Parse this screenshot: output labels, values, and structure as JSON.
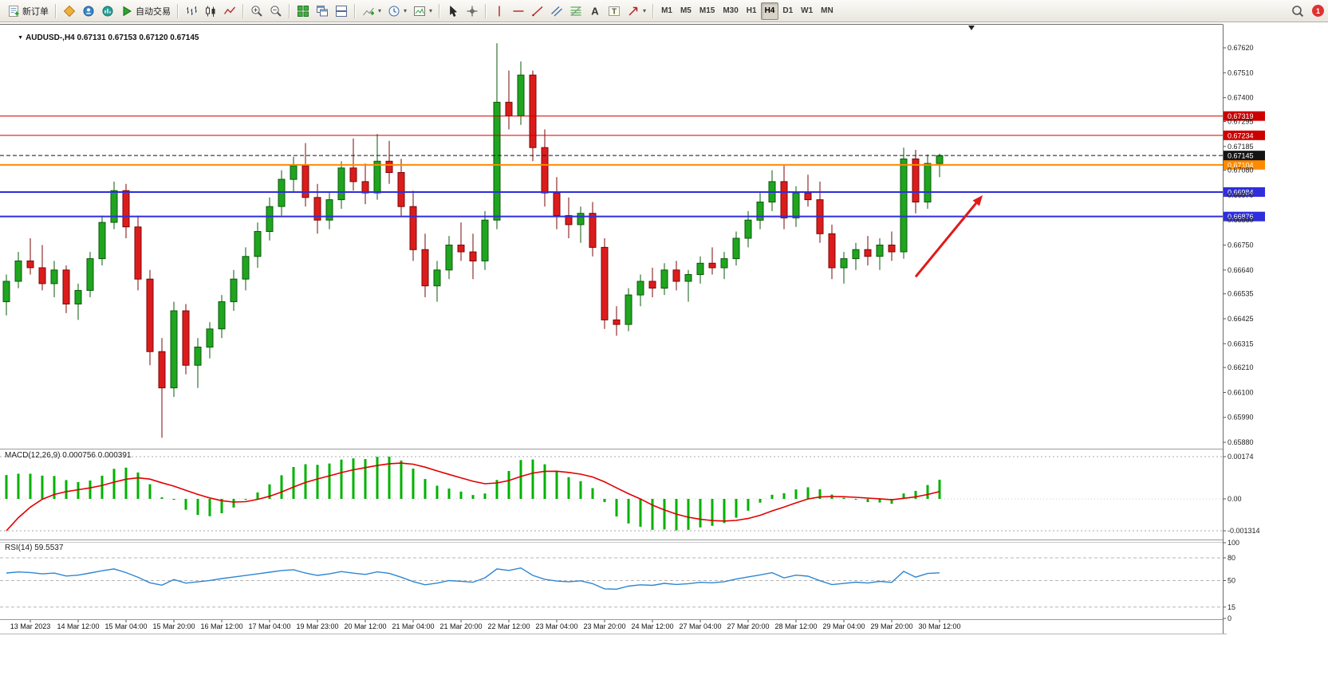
{
  "toolbar": {
    "buttons": [
      {
        "name": "new-order-button",
        "icon": "new-order",
        "label": "新订单"
      },
      {
        "type": "sep"
      },
      {
        "name": "market-button",
        "icon": "market"
      },
      {
        "name": "community-button",
        "icon": "community"
      },
      {
        "name": "signals-button",
        "icon": "signals"
      },
      {
        "name": "autotrade-button",
        "icon": "play",
        "label": "自动交易"
      },
      {
        "type": "sep"
      },
      {
        "name": "bar-chart-button",
        "icon": "bars"
      },
      {
        "name": "candlestick-chart-button",
        "icon": "candles"
      },
      {
        "name": "line-chart-button",
        "icon": "linechart"
      },
      {
        "type": "sep"
      },
      {
        "name": "zoom-in-button",
        "icon": "zoom-in"
      },
      {
        "name": "zoom-out-button",
        "icon": "zoom-out"
      },
      {
        "type": "sep"
      },
      {
        "name": "tile-windows-button",
        "icon": "tile"
      },
      {
        "name": "cascade-windows-button",
        "icon": "cascade"
      },
      {
        "name": "arrange-windows-button",
        "icon": "arrange"
      },
      {
        "type": "sep"
      },
      {
        "name": "indicators-button",
        "icon": "indicator",
        "caret": true
      },
      {
        "name": "periods-button",
        "icon": "clock",
        "caret": true
      },
      {
        "name": "templates-button",
        "icon": "template",
        "caret": true
      },
      {
        "type": "sep"
      },
      {
        "name": "cursor-button",
        "icon": "cursor"
      },
      {
        "name": "crosshair-button",
        "icon": "crosshair"
      },
      {
        "type": "sep"
      },
      {
        "name": "vertical-line-button",
        "icon": "vline"
      },
      {
        "name": "horizontal-line-button",
        "icon": "hline"
      },
      {
        "name": "trendline-button",
        "icon": "trendline"
      },
      {
        "name": "channel-button",
        "icon": "channel"
      },
      {
        "name": "fibonacci-button",
        "icon": "fibo"
      },
      {
        "name": "text-button",
        "icon": "text-a"
      },
      {
        "name": "label-button",
        "icon": "text-t"
      },
      {
        "name": "arrows-button",
        "icon": "arrow-tool",
        "caret": true
      },
      {
        "type": "sep"
      }
    ],
    "timeframes": [
      {
        "label": "M1"
      },
      {
        "label": "M5"
      },
      {
        "label": "M15"
      },
      {
        "label": "M30"
      },
      {
        "label": "H1"
      },
      {
        "label": "H4",
        "active": true
      },
      {
        "label": "D1"
      },
      {
        "label": "W1"
      },
      {
        "label": "MN"
      }
    ],
    "right": {
      "notification_count": "1"
    }
  },
  "chart": {
    "expander_glyph": "▼",
    "title": "AUDUSD-,H4 0.67131 0.67153 0.67120 0.67145"
  },
  "chart_data": {
    "type": "candlestick",
    "symbol": "AUDUSD-",
    "period": "H4",
    "ohlc_current": {
      "open": "0.67131",
      "high": "0.67153",
      "low": "0.67120",
      "close": "0.67145"
    },
    "y_axis": {
      "max": 0.67722,
      "min": 0.65852
    },
    "price_axis_labels": [
      "0.67620",
      "0.67510",
      "0.67400",
      "0.67295",
      "0.67185",
      "0.67080",
      "0.66970",
      "0.66860",
      "0.66750",
      "0.66640",
      "0.66535",
      "0.66425",
      "0.66315",
      "0.66210",
      "0.66100",
      "0.65990",
      "0.65880"
    ],
    "time_labels": [
      "13 Mar 2023",
      "14 Mar 12:00",
      "15 Mar 04:00",
      "15 Mar 20:00",
      "16 Mar 12:00",
      "17 Mar 04:00",
      "19 Mar 23:00",
      "20 Mar 12:00",
      "21 Mar 04:00",
      "21 Mar 20:00",
      "22 Mar 12:00",
      "23 Mar 04:00",
      "23 Mar 20:00",
      "24 Mar 12:00",
      "27 Mar 04:00",
      "27 Mar 20:00",
      "28 Mar 12:00",
      "29 Mar 04:00",
      "29 Mar 20:00",
      "30 Mar 12:00"
    ],
    "candles": [
      [
        0.665,
        0.6662,
        0.6644,
        0.6659
      ],
      [
        0.6659,
        0.6672,
        0.6656,
        0.6668
      ],
      [
        0.6668,
        0.6678,
        0.6662,
        0.6665
      ],
      [
        0.6665,
        0.6675,
        0.6655,
        0.6658
      ],
      [
        0.6658,
        0.6668,
        0.6652,
        0.6664
      ],
      [
        0.6664,
        0.6666,
        0.6645,
        0.6649
      ],
      [
        0.6649,
        0.6658,
        0.6642,
        0.6655
      ],
      [
        0.6655,
        0.6672,
        0.6652,
        0.6669
      ],
      [
        0.6669,
        0.6688,
        0.6666,
        0.6685
      ],
      [
        0.6685,
        0.6703,
        0.6682,
        0.6699
      ],
      [
        0.6699,
        0.6702,
        0.6678,
        0.6683
      ],
      [
        0.6683,
        0.6688,
        0.6655,
        0.666
      ],
      [
        0.666,
        0.6664,
        0.6622,
        0.6628
      ],
      [
        0.6628,
        0.6634,
        0.659,
        0.6612
      ],
      [
        0.6612,
        0.665,
        0.6608,
        0.6646
      ],
      [
        0.6646,
        0.6649,
        0.6618,
        0.6622
      ],
      [
        0.6622,
        0.6634,
        0.6612,
        0.663
      ],
      [
        0.663,
        0.6641,
        0.6625,
        0.6638
      ],
      [
        0.6638,
        0.6653,
        0.6634,
        0.665
      ],
      [
        0.665,
        0.6664,
        0.6646,
        0.666
      ],
      [
        0.666,
        0.6674,
        0.6655,
        0.667
      ],
      [
        0.667,
        0.6685,
        0.6665,
        0.6681
      ],
      [
        0.6681,
        0.6696,
        0.6677,
        0.6692
      ],
      [
        0.6692,
        0.6708,
        0.6688,
        0.6704
      ],
      [
        0.6704,
        0.6714,
        0.6698,
        0.671
      ],
      [
        0.671,
        0.672,
        0.6692,
        0.6696
      ],
      [
        0.6696,
        0.6702,
        0.668,
        0.6686
      ],
      [
        0.6686,
        0.6698,
        0.6682,
        0.6695
      ],
      [
        0.6695,
        0.6712,
        0.6691,
        0.6709
      ],
      [
        0.6709,
        0.6722,
        0.6699,
        0.6703
      ],
      [
        0.6703,
        0.6711,
        0.6693,
        0.6698
      ],
      [
        0.6698,
        0.6724,
        0.6695,
        0.6712
      ],
      [
        0.6712,
        0.6721,
        0.6702,
        0.6707
      ],
      [
        0.6707,
        0.6713,
        0.6688,
        0.6692
      ],
      [
        0.6692,
        0.6699,
        0.6668,
        0.6673
      ],
      [
        0.6673,
        0.668,
        0.6652,
        0.6657
      ],
      [
        0.6657,
        0.6668,
        0.665,
        0.6664
      ],
      [
        0.6664,
        0.6679,
        0.666,
        0.6675
      ],
      [
        0.6675,
        0.6685,
        0.6668,
        0.6672
      ],
      [
        0.6672,
        0.668,
        0.666,
        0.6668
      ],
      [
        0.6668,
        0.669,
        0.6664,
        0.6686
      ],
      [
        0.6686,
        0.6764,
        0.6682,
        0.6738
      ],
      [
        0.6738,
        0.6752,
        0.6726,
        0.6732
      ],
      [
        0.6732,
        0.6756,
        0.6728,
        0.675
      ],
      [
        0.675,
        0.6752,
        0.6712,
        0.6718
      ],
      [
        0.6718,
        0.6726,
        0.6692,
        0.6698
      ],
      [
        0.6698,
        0.6705,
        0.6682,
        0.6688
      ],
      [
        0.6688,
        0.6696,
        0.6678,
        0.6684
      ],
      [
        0.6684,
        0.6692,
        0.6676,
        0.6689
      ],
      [
        0.6689,
        0.6694,
        0.667,
        0.6674
      ],
      [
        0.6674,
        0.6678,
        0.6638,
        0.6642
      ],
      [
        0.6642,
        0.6648,
        0.6635,
        0.664
      ],
      [
        0.664,
        0.6656,
        0.6637,
        0.6653
      ],
      [
        0.6653,
        0.6662,
        0.6648,
        0.6659
      ],
      [
        0.6659,
        0.6665,
        0.6652,
        0.6656
      ],
      [
        0.6656,
        0.6667,
        0.6653,
        0.6664
      ],
      [
        0.6664,
        0.6668,
        0.6655,
        0.6659
      ],
      [
        0.6659,
        0.6664,
        0.665,
        0.6662
      ],
      [
        0.6662,
        0.667,
        0.6658,
        0.6667
      ],
      [
        0.6667,
        0.6674,
        0.6662,
        0.6665
      ],
      [
        0.6665,
        0.6672,
        0.666,
        0.6669
      ],
      [
        0.6669,
        0.6681,
        0.6666,
        0.6678
      ],
      [
        0.6678,
        0.669,
        0.6674,
        0.6686
      ],
      [
        0.6686,
        0.6698,
        0.6682,
        0.6694
      ],
      [
        0.6694,
        0.6708,
        0.669,
        0.6703
      ],
      [
        0.6703,
        0.671,
        0.6682,
        0.6687
      ],
      [
        0.6687,
        0.6701,
        0.6683,
        0.6698
      ],
      [
        0.6698,
        0.6706,
        0.6692,
        0.6695
      ],
      [
        0.6695,
        0.6703,
        0.6676,
        0.668
      ],
      [
        0.668,
        0.6684,
        0.666,
        0.6665
      ],
      [
        0.6665,
        0.6672,
        0.6658,
        0.6669
      ],
      [
        0.6669,
        0.6676,
        0.6664,
        0.6673
      ],
      [
        0.6673,
        0.6679,
        0.6666,
        0.667
      ],
      [
        0.667,
        0.6678,
        0.6664,
        0.6675
      ],
      [
        0.6675,
        0.6681,
        0.6668,
        0.6672
      ],
      [
        0.6672,
        0.6718,
        0.6669,
        0.6713
      ],
      [
        0.6713,
        0.6717,
        0.6689,
        0.6694
      ],
      [
        0.6694,
        0.6715,
        0.6691,
        0.6711
      ],
      [
        0.6711,
        0.67153,
        0.6705,
        0.67145
      ]
    ],
    "hlines": [
      {
        "price": 0.67319,
        "label": "0.67319",
        "color": "#CC0000",
        "width": 1,
        "role": "resistance"
      },
      {
        "price": 0.67234,
        "label": "0.67234",
        "color": "#CC0000",
        "width": 1,
        "role": "resistance"
      },
      {
        "price": 0.67104,
        "label": "0.67104",
        "color": "#FF8A00",
        "width": 2,
        "role": "level"
      },
      {
        "price": 0.66984,
        "label": "0.66984",
        "color": "#2E2EDC",
        "width": 2,
        "role": "support"
      },
      {
        "price": 0.66876,
        "label": "0.66876",
        "color": "#2E2EDC",
        "width": 2,
        "role": "support"
      },
      {
        "price": 0.67145,
        "label": "0.67145",
        "color": "#151515",
        "width": 1,
        "style": "dashed",
        "role": "bid"
      }
    ],
    "arrow_annotation": {
      "from": {
        "i": 76,
        "price": 0.6661
      },
      "to": {
        "i": 81.6,
        "price": 0.6697
      },
      "color": "#E01A1A"
    },
    "indicators": {
      "macd": {
        "display": "MACD(12,26,9) 0.000756 0.000391",
        "name": "MACD(12,26,9)",
        "values": [
          "0.000756",
          "0.000391"
        ],
        "scale_max": {
          "label": "0.00174",
          "value": 0.00174
        },
        "zero_label": "0.00",
        "scale_min": {
          "label": "-0.001314",
          "value": -0.001314
        },
        "histogram_color": "#00B200",
        "signal_color": "#E00000"
      },
      "rsi": {
        "display": "RSI(14) 59.5537",
        "name": "RSI(14)",
        "value": "59.5537",
        "line_color": "#2E86D2",
        "levels": [
          80,
          50,
          15
        ],
        "scale_labels": [
          {
            "label": "100",
            "value": 100
          },
          {
            "label": "80",
            "value": 80
          },
          {
            "label": "50",
            "value": 50
          },
          {
            "label": "15",
            "value": 15
          },
          {
            "label": "0",
            "value": 0
          }
        ]
      }
    }
  }
}
